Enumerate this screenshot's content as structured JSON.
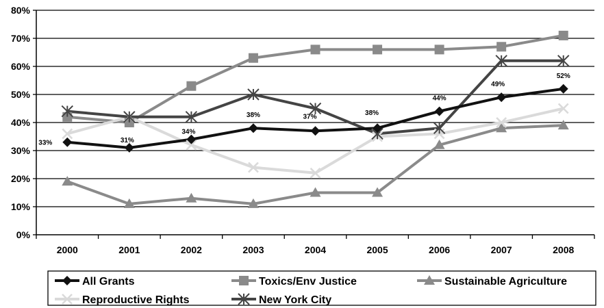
{
  "chart_data": {
    "type": "line",
    "title": "",
    "xlabel": "",
    "ylabel": "",
    "x": [
      "2000",
      "2001",
      "2002",
      "2003",
      "2004",
      "2005",
      "2006",
      "2007",
      "2008"
    ],
    "ylim": [
      0,
      80
    ],
    "yticks": [
      "0%",
      "10%",
      "20%",
      "30%",
      "40%",
      "50%",
      "60%",
      "70%",
      "80%"
    ],
    "grid": true,
    "legend_position": "bottom",
    "series": [
      {
        "name": "All Grants",
        "values": [
          33,
          31,
          34,
          38,
          37,
          38,
          44,
          49,
          52
        ],
        "color": "#111111",
        "marker": "diamond",
        "labels": [
          "33%",
          "31%",
          "34%",
          "38%",
          "37%",
          "38%",
          "44%",
          "49%",
          "52%"
        ]
      },
      {
        "name": "Toxics/Env Justice",
        "values": [
          42,
          40,
          53,
          63,
          66,
          66,
          66,
          67,
          71
        ],
        "color": "#8a8a8a",
        "marker": "square"
      },
      {
        "name": "Sustainable Agriculture",
        "values": [
          19,
          11,
          13,
          11,
          15,
          15,
          32,
          38,
          39
        ],
        "color": "#8a8a8a",
        "marker": "triangle"
      },
      {
        "name": "Reproductive Rights",
        "values": [
          36,
          42,
          32,
          24,
          22,
          35,
          36,
          40,
          45
        ],
        "color": "#dadada",
        "marker": "x"
      },
      {
        "name": "New York City",
        "values": [
          44,
          42,
          42,
          50,
          45,
          36,
          38,
          62,
          62
        ],
        "color": "#444444",
        "marker": "star"
      }
    ]
  }
}
